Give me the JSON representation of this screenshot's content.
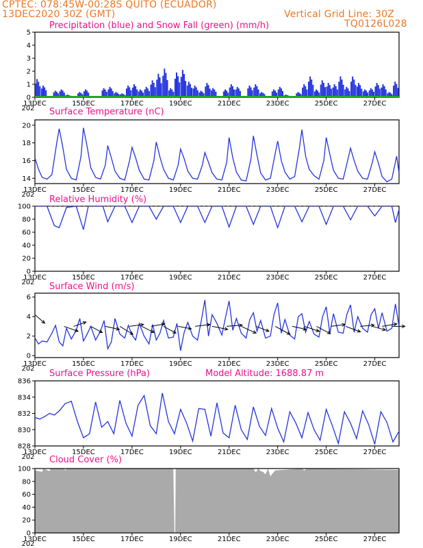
{
  "header": {
    "line1": "CPTEC:   078:45W-00:28S   QUITO (ECUADOR)",
    "line2": "13DEC2020 30Z (GMT)",
    "grid_note": "Vertical Grid Line: 30Z",
    "code": "TQ0126L028"
  },
  "colors": {
    "header": "#ee7722",
    "title": "#ee1188",
    "line": "#2233dd",
    "snow": "#22aa22",
    "cloud": "#aaaaaa",
    "arrow": "#000000"
  },
  "x_axis": {
    "days": [
      13,
      28
    ],
    "tick_labels": [
      "13DEC",
      "15DEC",
      "17DEC",
      "19DEC",
      "21DEC",
      "23DEC",
      "25DEC",
      "27DEC"
    ],
    "tick_days": [
      13,
      15,
      17,
      19,
      21,
      23,
      25,
      27
    ],
    "corner_stub": "202"
  },
  "chart_data": [
    {
      "id": "precip",
      "type": "bar",
      "title": "Precipitation (blue) and Snow Fall (green) (mm/h)",
      "ylim": [
        0,
        5
      ],
      "yticks": [
        "0",
        "1",
        "2",
        "3",
        "4",
        "5"
      ],
      "x": [
        13.0,
        13.25,
        13.5,
        13.75,
        14.0,
        14.25,
        14.5,
        14.75,
        15.0,
        15.25,
        15.5,
        15.75,
        16.0,
        16.25,
        16.5,
        16.75,
        17.0,
        17.25,
        17.5,
        17.75,
        18.0,
        18.25,
        18.5,
        18.75,
        19.0,
        19.25,
        19.5,
        19.75,
        20.0,
        20.25,
        20.5,
        20.75,
        21.0,
        21.25,
        21.5,
        21.75,
        22.0,
        22.25,
        22.5,
        22.75,
        23.0,
        23.25,
        23.5,
        23.75,
        24.0,
        24.25,
        24.5,
        24.75,
        25.0,
        25.25,
        25.5,
        25.75,
        26.0,
        26.25,
        26.5,
        26.75,
        27.0,
        27.25,
        27.5,
        27.75
      ],
      "values": [
        1.4,
        0.9,
        0.1,
        0.5,
        0.6,
        0.2,
        0.1,
        0.4,
        0.6,
        0.1,
        0.0,
        0.7,
        0.8,
        0.4,
        0.3,
        0.9,
        1.0,
        0.6,
        0.8,
        1.3,
        1.8,
        2.2,
        0.7,
        1.9,
        2.1,
        1.2,
        0.9,
        0.5,
        1.1,
        0.7,
        0.0,
        0.6,
        1.0,
        0.8,
        0.0,
        0.9,
        1.0,
        0.4,
        0.1,
        0.6,
        0.8,
        0.2,
        0.1,
        0.4,
        1.0,
        1.6,
        0.6,
        1.3,
        1.1,
        1.0,
        1.6,
        0.8,
        1.6,
        1.1,
        0.6,
        0.7,
        1.1,
        1.0,
        0.4,
        1.2
      ],
      "snow": 0
    },
    {
      "id": "temp",
      "type": "line",
      "title": "Surface Temperature (nC)",
      "ylim": [
        13.4,
        20.6
      ],
      "yticks": [
        "14",
        "16",
        "18",
        "20"
      ],
      "ytick_values": [
        14,
        16,
        18,
        20
      ],
      "x": [
        13.0,
        13.15,
        13.3,
        13.5,
        13.7,
        13.9,
        14.0,
        14.15,
        14.3,
        14.5,
        14.7,
        14.9,
        15.0,
        15.15,
        15.3,
        15.5,
        15.7,
        15.9,
        16.0,
        16.15,
        16.3,
        16.5,
        16.7,
        16.9,
        17.0,
        17.15,
        17.3,
        17.5,
        17.7,
        17.9,
        18.0,
        18.15,
        18.3,
        18.5,
        18.7,
        18.9,
        19.0,
        19.15,
        19.3,
        19.5,
        19.7,
        19.9,
        20.0,
        20.15,
        20.3,
        20.5,
        20.7,
        20.9,
        21.0,
        21.15,
        21.3,
        21.5,
        21.7,
        21.9,
        22.0,
        22.15,
        22.3,
        22.5,
        22.7,
        22.9,
        23.0,
        23.15,
        23.3,
        23.5,
        23.7,
        23.9,
        24.0,
        24.15,
        24.3,
        24.5,
        24.7,
        24.9,
        25.0,
        25.15,
        25.3,
        25.5,
        25.7,
        25.9,
        26.0,
        26.15,
        26.3,
        26.5,
        26.7,
        26.9,
        27.0,
        27.15,
        27.3,
        27.5,
        27.7,
        27.9,
        28.0
      ],
      "values": [
        16.3,
        15.0,
        14.1,
        13.9,
        14.4,
        18.0,
        19.6,
        17.5,
        15.0,
        14.0,
        13.8,
        16.5,
        19.7,
        17.6,
        15.2,
        14.1,
        13.9,
        15.5,
        17.7,
        16.3,
        14.8,
        14.0,
        13.8,
        16.0,
        17.5,
        16.3,
        14.9,
        13.9,
        13.8,
        16.0,
        18.1,
        16.4,
        15.0,
        14.0,
        13.8,
        15.5,
        17.3,
        16.2,
        14.8,
        14.0,
        13.9,
        15.5,
        16.9,
        15.8,
        14.6,
        13.9,
        13.8,
        15.8,
        18.6,
        16.3,
        14.7,
        13.8,
        13.7,
        16.2,
        18.8,
        16.6,
        14.6,
        13.8,
        14.0,
        16.8,
        18.2,
        16.0,
        14.7,
        13.9,
        14.2,
        17.5,
        19.5,
        16.5,
        15.0,
        14.3,
        13.9,
        16.0,
        18.6,
        16.7,
        14.9,
        14.0,
        13.9,
        16.2,
        17.4,
        16.0,
        14.8,
        14.0,
        13.9,
        15.8,
        17.0,
        15.7,
        14.2,
        13.6,
        13.9,
        16.5,
        14.6
      ]
    },
    {
      "id": "rh",
      "type": "line",
      "title": "Relative Humidity (%)",
      "ylim": [
        0,
        100
      ],
      "yticks": [
        "0",
        "20",
        "40",
        "60",
        "80",
        "100"
      ],
      "ytick_values": [
        0,
        20,
        40,
        60,
        80,
        100
      ],
      "x": [
        13.0,
        13.5,
        13.8,
        14.0,
        14.3,
        14.7,
        15.0,
        15.2,
        15.5,
        15.8,
        16.0,
        16.3,
        16.7,
        17.0,
        17.3,
        17.7,
        18.0,
        18.3,
        18.7,
        19.0,
        19.3,
        19.7,
        20.0,
        20.3,
        20.7,
        21.0,
        21.3,
        21.7,
        22.0,
        22.3,
        22.7,
        23.0,
        23.3,
        23.7,
        24.0,
        24.3,
        24.7,
        25.0,
        25.3,
        25.7,
        26.0,
        26.3,
        26.7,
        27.0,
        27.3,
        27.7,
        27.85,
        28.0
      ],
      "values": [
        100,
        100,
        70,
        67,
        98,
        100,
        64,
        100,
        100,
        100,
        76,
        100,
        100,
        75,
        100,
        100,
        80,
        100,
        100,
        75,
        100,
        100,
        75,
        100,
        100,
        68,
        100,
        100,
        72,
        100,
        100,
        67,
        100,
        100,
        76,
        100,
        100,
        72,
        100,
        100,
        79,
        100,
        100,
        85,
        100,
        100,
        75,
        95
      ]
    },
    {
      "id": "wind",
      "type": "line",
      "title": "Surface Wind (m/s)",
      "ylim": [
        -0.2,
        6.4
      ],
      "yticks": [
        "0",
        "2",
        "4",
        "6"
      ],
      "ytick_values": [
        0,
        2,
        4,
        6
      ],
      "x": [
        13.0,
        13.15,
        13.3,
        13.5,
        13.7,
        13.85,
        14.0,
        14.15,
        14.3,
        14.5,
        14.7,
        14.85,
        15.0,
        15.15,
        15.3,
        15.5,
        15.7,
        15.85,
        16.0,
        16.15,
        16.3,
        16.5,
        16.7,
        16.85,
        17.0,
        17.15,
        17.3,
        17.5,
        17.7,
        17.85,
        18.0,
        18.15,
        18.3,
        18.5,
        18.7,
        18.85,
        19.0,
        19.15,
        19.3,
        19.5,
        19.7,
        19.85,
        20.0,
        20.15,
        20.3,
        20.5,
        20.7,
        20.85,
        21.0,
        21.15,
        21.3,
        21.5,
        21.7,
        21.85,
        22.0,
        22.15,
        22.3,
        22.5,
        22.7,
        22.85,
        23.0,
        23.15,
        23.3,
        23.5,
        23.7,
        23.85,
        24.0,
        24.15,
        24.3,
        24.5,
        24.7,
        24.85,
        25.0,
        25.15,
        25.3,
        25.5,
        25.7,
        25.85,
        26.0,
        26.15,
        26.3,
        26.5,
        26.7,
        26.85,
        27.0,
        27.15,
        27.3,
        27.5,
        27.7,
        27.85,
        28.0
      ],
      "values": [
        1.8,
        1.2,
        1.5,
        1.4,
        2.3,
        3.1,
        1.4,
        1.0,
        2.8,
        1.7,
        2.6,
        3.8,
        1.5,
        2.2,
        3.0,
        1.6,
        2.5,
        3.6,
        0.7,
        1.4,
        3.8,
        2.2,
        1.8,
        3.1,
        2.1,
        1.6,
        3.3,
        2.0,
        1.2,
        3.2,
        1.6,
        2.3,
        3.6,
        1.8,
        1.9,
        3.3,
        0.5,
        2.4,
        3.4,
        2.0,
        1.6,
        3.5,
        5.7,
        2.0,
        4.2,
        3.3,
        2.1,
        3.9,
        5.6,
        2.6,
        3.8,
        2.3,
        1.8,
        3.7,
        4.4,
        2.5,
        3.6,
        1.8,
        2.0,
        4.2,
        5.4,
        2.3,
        3.7,
        2.1,
        1.7,
        4.0,
        4.3,
        2.4,
        3.5,
        2.2,
        1.9,
        4.0,
        5.0,
        2.3,
        4.3,
        2.4,
        2.3,
        4.2,
        5.2,
        2.4,
        4.0,
        2.8,
        2.4,
        4.2,
        4.8,
        2.8,
        4.4,
        2.5,
        2.8,
        5.3,
        3.0
      ],
      "arrows": [
        {
          "day": 13.0,
          "u": 1.2,
          "v": -1.4
        },
        {
          "day": 14.2,
          "u": 1.7,
          "v": -0.8
        },
        {
          "day": 14.6,
          "u": 1.5,
          "v": 0.7
        },
        {
          "day": 15.3,
          "u": 1.4,
          "v": -1.0
        },
        {
          "day": 15.9,
          "u": 1.7,
          "v": -0.5
        },
        {
          "day": 16.5,
          "u": 1.6,
          "v": -1.3
        },
        {
          "day": 16.9,
          "u": 1.7,
          "v": 0.3
        },
        {
          "day": 17.4,
          "u": 1.5,
          "v": -1.0
        },
        {
          "day": 17.8,
          "u": 1.6,
          "v": 0.4
        },
        {
          "day": 18.3,
          "u": 1.5,
          "v": -1.1
        },
        {
          "day": 18.9,
          "u": 1.6,
          "v": -0.4
        },
        {
          "day": 19.6,
          "u": 1.8,
          "v": 0.3
        },
        {
          "day": 20.3,
          "u": 1.9,
          "v": -0.5
        },
        {
          "day": 20.9,
          "u": 1.9,
          "v": 0.2
        },
        {
          "day": 21.5,
          "u": 1.8,
          "v": -1.1
        },
        {
          "day": 22.1,
          "u": 1.6,
          "v": -0.8
        },
        {
          "day": 22.9,
          "u": 1.8,
          "v": -1.3
        },
        {
          "day": 23.6,
          "u": 1.7,
          "v": -0.5
        },
        {
          "day": 24.1,
          "u": 1.8,
          "v": -0.8
        },
        {
          "day": 24.6,
          "u": 1.7,
          "v": -1.2
        },
        {
          "day": 25.2,
          "u": 1.7,
          "v": 0.3
        },
        {
          "day": 25.8,
          "u": 1.8,
          "v": -0.9
        },
        {
          "day": 26.4,
          "u": 1.7,
          "v": 0.2
        },
        {
          "day": 26.9,
          "u": 1.6,
          "v": -0.6
        },
        {
          "day": 27.3,
          "u": 1.8,
          "v": 0.4
        },
        {
          "day": 27.7,
          "u": 1.6,
          "v": 0.0
        }
      ]
    },
    {
      "id": "press",
      "type": "line",
      "title": "Surface Pressure (hPa)",
      "annotation": "Model Altitude: 1688.87 m",
      "ylim": [
        828,
        836
      ],
      "yticks": [
        "828",
        "830",
        "832",
        "834",
        "836"
      ],
      "ytick_values": [
        828,
        830,
        832,
        834,
        836
      ],
      "x": [
        13.0,
        13.2,
        13.4,
        13.6,
        13.8,
        14.0,
        14.25,
        14.5,
        14.75,
        15.0,
        15.25,
        15.5,
        15.75,
        16.0,
        16.25,
        16.5,
        16.75,
        17.0,
        17.25,
        17.5,
        17.75,
        18.0,
        18.25,
        18.5,
        18.75,
        19.0,
        19.25,
        19.5,
        19.75,
        20.0,
        20.25,
        20.5,
        20.75,
        21.0,
        21.25,
        21.5,
        21.75,
        22.0,
        22.25,
        22.5,
        22.75,
        23.0,
        23.25,
        23.5,
        23.75,
        24.0,
        24.25,
        24.5,
        24.75,
        25.0,
        25.25,
        25.5,
        25.75,
        26.0,
        26.25,
        26.5,
        26.75,
        27.0,
        27.25,
        27.5,
        27.75,
        28.0
      ],
      "values": [
        831.5,
        831.3,
        831.6,
        832.0,
        831.8,
        832.3,
        833.2,
        833.5,
        831.0,
        829.0,
        829.5,
        833.4,
        830.3,
        831.0,
        829.5,
        833.6,
        830.8,
        829.2,
        833.0,
        834.2,
        830.5,
        829.5,
        834.5,
        831.0,
        829.5,
        832.5,
        830.8,
        828.6,
        832.6,
        832.5,
        829.2,
        833.3,
        829.6,
        829.0,
        833.0,
        830.0,
        828.8,
        832.8,
        830.4,
        829.3,
        832.6,
        830.2,
        828.5,
        832.2,
        830.8,
        829.0,
        832.1,
        830.0,
        828.7,
        832.5,
        830.5,
        828.3,
        832.2,
        830.8,
        828.9,
        832.3,
        830.6,
        828.2,
        832.2,
        830.9,
        828.5,
        829.8
      ]
    },
    {
      "id": "cloud",
      "type": "area",
      "title": "Cloud Cover (%)",
      "ylim": [
        0,
        100
      ],
      "yticks": [
        "0",
        "20",
        "40",
        "60",
        "80",
        "100"
      ],
      "ytick_values": [
        0,
        20,
        40,
        60,
        80,
        100
      ],
      "x": [
        13.0,
        13.3,
        13.35,
        13.6,
        13.65,
        14.2,
        14.25,
        14.3,
        17.0,
        18.7,
        18.75,
        18.78,
        18.8,
        22.0,
        22.1,
        22.2,
        22.3,
        22.4,
        22.5,
        22.6,
        22.7,
        22.8,
        22.9,
        24.0,
        24.1,
        24.2,
        28.0
      ],
      "values": [
        97,
        95,
        100,
        96,
        100,
        100,
        97,
        100,
        100,
        100,
        0,
        0,
        100,
        100,
        94,
        100,
        96,
        95,
        91,
        100,
        88,
        93,
        97,
        100,
        97,
        100,
        98
      ]
    }
  ]
}
